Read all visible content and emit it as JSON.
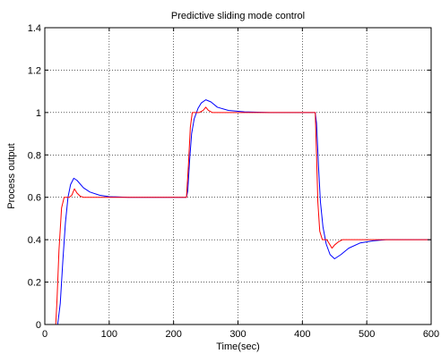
{
  "chart_data": {
    "type": "line",
    "title": "Predictive sliding mode control",
    "xlabel": "Time(sec)",
    "ylabel": "Process output",
    "xlim": [
      0,
      600
    ],
    "ylim": [
      0,
      1.4
    ],
    "xticks": [
      0,
      100,
      200,
      300,
      400,
      500,
      600
    ],
    "yticks": [
      0,
      0.2,
      0.4,
      0.6,
      0.8,
      1,
      1.2,
      1.4
    ],
    "xtick_labels": [
      "0",
      "100",
      "200",
      "300",
      "400",
      "500",
      "600"
    ],
    "ytick_labels": [
      "0",
      "0.2",
      "0.4",
      "0.6",
      "0.8",
      "1",
      "1.2",
      "1.4"
    ],
    "grid": true,
    "series": [
      {
        "color": "#0000ff",
        "points": [
          [
            0,
            0
          ],
          [
            20,
            0
          ],
          [
            24,
            0.1
          ],
          [
            28,
            0.3
          ],
          [
            32,
            0.48
          ],
          [
            36,
            0.6
          ],
          [
            40,
            0.66
          ],
          [
            45,
            0.69
          ],
          [
            50,
            0.68
          ],
          [
            60,
            0.645
          ],
          [
            70,
            0.625
          ],
          [
            85,
            0.61
          ],
          [
            100,
            0.603
          ],
          [
            130,
            0.6
          ],
          [
            220,
            0.6
          ],
          [
            222,
            0.63
          ],
          [
            225,
            0.78
          ],
          [
            228,
            0.9
          ],
          [
            232,
            0.97
          ],
          [
            238,
            1.02
          ],
          [
            243,
            1.045
          ],
          [
            250,
            1.06
          ],
          [
            258,
            1.05
          ],
          [
            268,
            1.025
          ],
          [
            285,
            1.01
          ],
          [
            310,
            1.003
          ],
          [
            350,
            1.0
          ],
          [
            420,
            1.0
          ],
          [
            422,
            0.95
          ],
          [
            425,
            0.75
          ],
          [
            428,
            0.58
          ],
          [
            432,
            0.46
          ],
          [
            437,
            0.38
          ],
          [
            443,
            0.33
          ],
          [
            450,
            0.31
          ],
          [
            460,
            0.33
          ],
          [
            472,
            0.36
          ],
          [
            490,
            0.385
          ],
          [
            510,
            0.395
          ],
          [
            530,
            0.4
          ],
          [
            600,
            0.4
          ]
        ]
      },
      {
        "color": "#ff0000",
        "points": [
          [
            0,
            0
          ],
          [
            17,
            0
          ],
          [
            19,
            0.12
          ],
          [
            22,
            0.35
          ],
          [
            26,
            0.55
          ],
          [
            30,
            0.6
          ],
          [
            38,
            0.6
          ],
          [
            42,
            0.61
          ],
          [
            46,
            0.64
          ],
          [
            50,
            0.62
          ],
          [
            55,
            0.605
          ],
          [
            60,
            0.6
          ],
          [
            220,
            0.6
          ],
          [
            223,
            0.75
          ],
          [
            226,
            0.93
          ],
          [
            229,
            1.0
          ],
          [
            240,
            1.0
          ],
          [
            246,
            1.01
          ],
          [
            250,
            1.025
          ],
          [
            254,
            1.01
          ],
          [
            260,
            1.0
          ],
          [
            420,
            1.0
          ],
          [
            422,
            0.8
          ],
          [
            424,
            0.58
          ],
          [
            427,
            0.44
          ],
          [
            431,
            0.4
          ],
          [
            438,
            0.4
          ],
          [
            442,
            0.38
          ],
          [
            446,
            0.36
          ],
          [
            450,
            0.375
          ],
          [
            456,
            0.39
          ],
          [
            462,
            0.4
          ],
          [
            600,
            0.4
          ]
        ]
      }
    ]
  }
}
